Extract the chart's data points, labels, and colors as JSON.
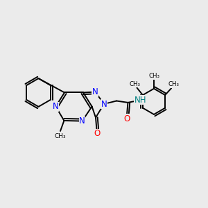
{
  "bg_color": "#ebebeb",
  "bond_color": "#000000",
  "n_color": "#0000ff",
  "o_color": "#ff0000",
  "h_color": "#008080",
  "figsize": [
    3.0,
    3.0
  ],
  "dpi": 100,
  "xlim": [
    0,
    1
  ],
  "ylim": [
    0,
    1
  ]
}
